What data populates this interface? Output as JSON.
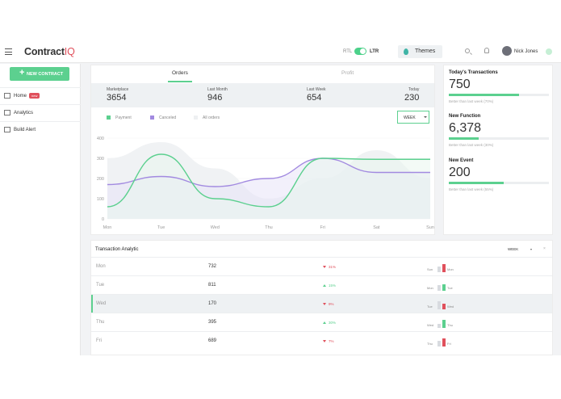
{
  "brand": {
    "name": "Contract",
    "suffix": "IQ"
  },
  "header": {
    "rtl_label": "RTL",
    "ltr_label": "LTR",
    "themes_label": "Themes",
    "user_name": "Nick Jones"
  },
  "sidebar": {
    "new_contract": "NEW CONTRACT",
    "items": [
      {
        "label": "Home",
        "badge": "new",
        "icon": "home-icon"
      },
      {
        "label": "Analytics",
        "icon": "analytics-icon"
      },
      {
        "label": "Build Alert",
        "icon": "tools-icon"
      }
    ]
  },
  "chart_card": {
    "tabs": [
      "Orders",
      "Profit"
    ],
    "stats": [
      {
        "label": "Marketplace",
        "value": "3654"
      },
      {
        "label": "Last Month",
        "value": "946"
      },
      {
        "label": "Last Week",
        "value": "654"
      },
      {
        "label": "Today",
        "value": "230"
      }
    ],
    "legend": [
      "Payment",
      "Canceled",
      "All orders"
    ],
    "range": "WEEK"
  },
  "chart_data": {
    "type": "line",
    "x": [
      "Mon",
      "Tue",
      "Wed",
      "Thu",
      "Fri",
      "Sat",
      "Sun"
    ],
    "ylim": [
      0,
      400
    ],
    "yticks": [
      "0",
      "100",
      "200",
      "300",
      "400"
    ],
    "series": [
      {
        "name": "Payment",
        "color": "#5cd08f",
        "values": [
          60,
          320,
          100,
          60,
          300,
          295,
          295
        ]
      },
      {
        "name": "Canceled",
        "color": "#a28ae0",
        "values": [
          170,
          210,
          160,
          200,
          300,
          230,
          230
        ]
      },
      {
        "name": "All orders",
        "color": "#e4e9ec",
        "values": [
          300,
          380,
          250,
          100,
          200,
          340,
          200
        ]
      }
    ]
  },
  "transactions": {
    "title": "Today's Transactions",
    "metrics": [
      {
        "title": "Today's Transactions",
        "value": "750",
        "note": "Better than last week (70%)",
        "fill": 0.7
      },
      {
        "title": "New Function",
        "value": "6,378",
        "note": "Better than last week (30%)",
        "fill": 0.3
      },
      {
        "title": "New Event",
        "value": "200",
        "note": "Better than last week (55%)",
        "fill": 0.55
      }
    ]
  },
  "table": {
    "title": "Transaction Analytic",
    "range": "WEEK",
    "rows": [
      {
        "day": "Mon",
        "value": "732",
        "pct": "31%",
        "dir": "down",
        "a": "Sun",
        "b": "Mon",
        "ha": 0.6,
        "hb": 0.8
      },
      {
        "day": "Tue",
        "value": "811",
        "pct": "15%",
        "dir": "up",
        "a": "Mon",
        "b": "Tue",
        "ha": 0.55,
        "hb": 0.7
      },
      {
        "day": "Wed",
        "value": "170",
        "pct": "9%",
        "dir": "down",
        "a": "Tue",
        "b": "Wed",
        "ha": 0.8,
        "hb": 0.6
      },
      {
        "day": "Thu",
        "value": "395",
        "pct": "30%",
        "dir": "up",
        "a": "Wed",
        "b": "Thu",
        "ha": 0.4,
        "hb": 0.85
      },
      {
        "day": "Fri",
        "value": "689",
        "pct": "7%",
        "dir": "down",
        "a": "Thu",
        "b": "Fri",
        "ha": 0.6,
        "hb": 0.8
      }
    ]
  }
}
